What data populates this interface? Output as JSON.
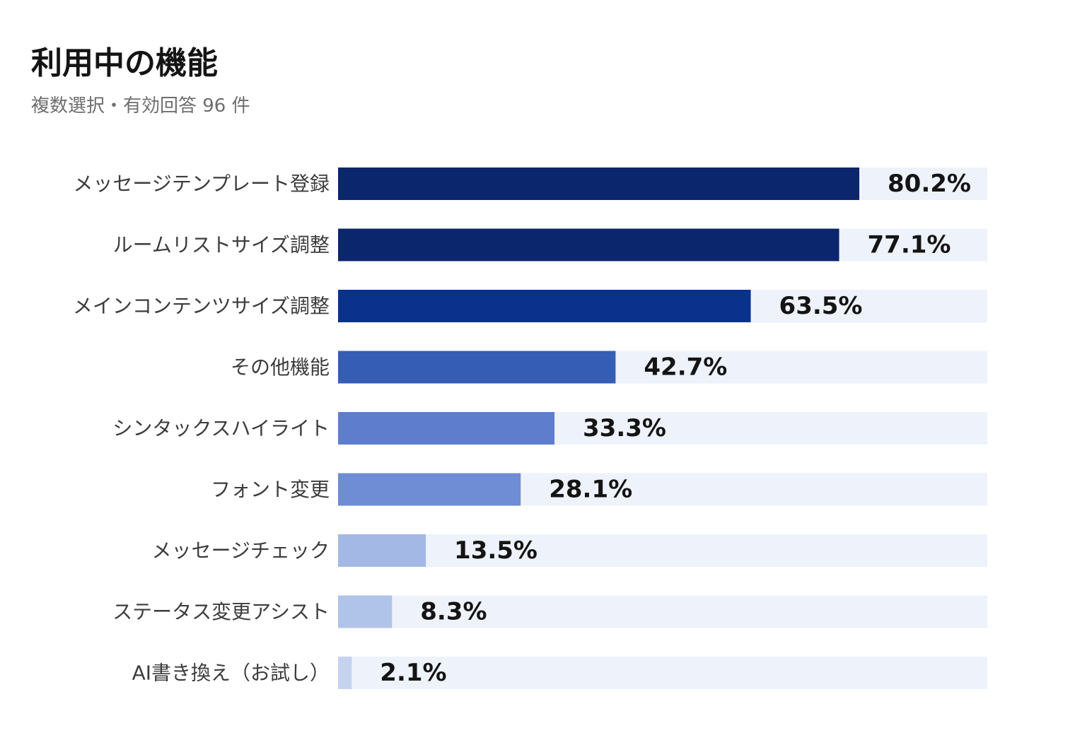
{
  "chart_data": {
    "type": "bar",
    "orientation": "horizontal",
    "title": "利用中の機能",
    "subtitle": "複数選択・有効回答 96 件",
    "categories": [
      "メッセージテンプレート登録",
      "ルームリストサイズ調整",
      "メインコンテンツサイズ調整",
      "その他機能",
      "シンタックスハイライト",
      "フォント変更",
      "メッセージチェック",
      "ステータス変更アシスト",
      "AI書き換え（お試し）"
    ],
    "values": [
      80.2,
      77.1,
      63.5,
      42.7,
      33.3,
      28.1,
      13.5,
      8.3,
      2.1
    ],
    "value_labels": [
      "80.2%",
      "77.1%",
      "63.5%",
      "42.7%",
      "33.3%",
      "28.1%",
      "13.5%",
      "8.3%",
      "2.1%"
    ],
    "xlim": [
      0,
      100
    ],
    "grid": false,
    "legend": "none",
    "colors": {
      "track": "#eef2fa",
      "bars": [
        "#0b266c",
        "#0b266c",
        "#0a318c",
        "#355db5",
        "#5e7ecd",
        "#6f8dd4",
        "#a3b8e5",
        "#b0c3e9",
        "#c5d3ef"
      ]
    }
  }
}
